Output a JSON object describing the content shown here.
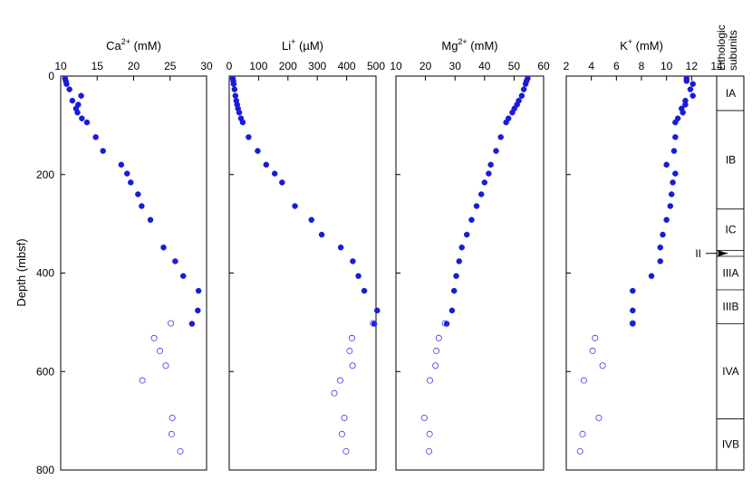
{
  "chart_data": {
    "type": "scatter",
    "y_axis": {
      "label": "Depth (mbsf)",
      "ticks": [
        0,
        200,
        400,
        600,
        800
      ],
      "ylim": [
        0,
        800
      ],
      "inverted": true
    },
    "panels": [
      {
        "title_base": "Ca",
        "title_sup": "2+",
        "title_unit": " (mM)",
        "xlim": [
          10,
          30
        ],
        "xticks": [
          10,
          15,
          20,
          25,
          30
        ],
        "series": [
          {
            "style": "filled",
            "points": [
              {
                "x": 10.6,
                "y": 5
              },
              {
                "x": 10.7,
                "y": 10
              },
              {
                "x": 10.8,
                "y": 16
              },
              {
                "x": 11.2,
                "y": 27
              },
              {
                "x": 12.8,
                "y": 40
              },
              {
                "x": 11.6,
                "y": 50
              },
              {
                "x": 12.4,
                "y": 58
              },
              {
                "x": 12.1,
                "y": 66
              },
              {
                "x": 12.3,
                "y": 74
              },
              {
                "x": 12.9,
                "y": 86
              },
              {
                "x": 13.6,
                "y": 94
              },
              {
                "x": 14.8,
                "y": 124
              },
              {
                "x": 15.8,
                "y": 152
              },
              {
                "x": 18.3,
                "y": 180
              },
              {
                "x": 19.1,
                "y": 198
              },
              {
                "x": 19.6,
                "y": 216
              },
              {
                "x": 20.6,
                "y": 240
              },
              {
                "x": 21.1,
                "y": 264
              },
              {
                "x": 22.3,
                "y": 292
              },
              {
                "x": 24.1,
                "y": 348
              },
              {
                "x": 25.7,
                "y": 376
              },
              {
                "x": 26.8,
                "y": 406
              },
              {
                "x": 28.9,
                "y": 436
              },
              {
                "x": 28.8,
                "y": 476
              },
              {
                "x": 28.0,
                "y": 503
              }
            ]
          },
          {
            "style": "open",
            "points": [
              {
                "x": 25.1,
                "y": 502
              },
              {
                "x": 22.8,
                "y": 532
              },
              {
                "x": 23.6,
                "y": 558
              },
              {
                "x": 24.4,
                "y": 588
              },
              {
                "x": 21.2,
                "y": 618
              },
              {
                "x": 25.3,
                "y": 694
              },
              {
                "x": 25.2,
                "y": 727
              },
              {
                "x": 26.4,
                "y": 762
              }
            ]
          }
        ]
      },
      {
        "title_base": "Li",
        "title_sup": "+",
        "title_unit": " (µM)",
        "xlim": [
          0,
          500
        ],
        "xticks": [
          0,
          100,
          200,
          300,
          400,
          500
        ],
        "series": [
          {
            "style": "filled",
            "points": [
              {
                "x": 12,
                "y": 5
              },
              {
                "x": 14,
                "y": 10
              },
              {
                "x": 15,
                "y": 16
              },
              {
                "x": 18,
                "y": 27
              },
              {
                "x": 21,
                "y": 40
              },
              {
                "x": 24,
                "y": 50
              },
              {
                "x": 27,
                "y": 58
              },
              {
                "x": 30,
                "y": 66
              },
              {
                "x": 34,
                "y": 74
              },
              {
                "x": 40,
                "y": 86
              },
              {
                "x": 46,
                "y": 94
              },
              {
                "x": 66,
                "y": 124
              },
              {
                "x": 97,
                "y": 152
              },
              {
                "x": 126,
                "y": 180
              },
              {
                "x": 155,
                "y": 198
              },
              {
                "x": 180,
                "y": 216
              },
              {
                "x": 224,
                "y": 264
              },
              {
                "x": 280,
                "y": 292
              },
              {
                "x": 315,
                "y": 322
              },
              {
                "x": 380,
                "y": 348
              },
              {
                "x": 421,
                "y": 376
              },
              {
                "x": 440,
                "y": 406
              },
              {
                "x": 460,
                "y": 436
              },
              {
                "x": 504,
                "y": 476
              },
              {
                "x": 494,
                "y": 503
              }
            ]
          },
          {
            "style": "open",
            "points": [
              {
                "x": 490,
                "y": 502
              },
              {
                "x": 418,
                "y": 532
              },
              {
                "x": 410,
                "y": 558
              },
              {
                "x": 420,
                "y": 588
              },
              {
                "x": 378,
                "y": 618
              },
              {
                "x": 358,
                "y": 644
              },
              {
                "x": 392,
                "y": 694
              },
              {
                "x": 384,
                "y": 727
              },
              {
                "x": 398,
                "y": 762
              }
            ]
          }
        ]
      },
      {
        "title_base": "Mg",
        "title_sup": "2+",
        "title_unit": " (mM)",
        "xlim": [
          10,
          60
        ],
        "xticks": [
          10,
          20,
          30,
          40,
          50,
          60
        ],
        "series": [
          {
            "style": "filled",
            "points": [
              {
                "x": 54.6,
                "y": 5
              },
              {
                "x": 54.2,
                "y": 10
              },
              {
                "x": 53.9,
                "y": 16
              },
              {
                "x": 53.3,
                "y": 27
              },
              {
                "x": 52.6,
                "y": 40
              },
              {
                "x": 51.6,
                "y": 50
              },
              {
                "x": 51.0,
                "y": 58
              },
              {
                "x": 50.1,
                "y": 66
              },
              {
                "x": 49.4,
                "y": 74
              },
              {
                "x": 48.1,
                "y": 86
              },
              {
                "x": 47.3,
                "y": 94
              },
              {
                "x": 45.5,
                "y": 124
              },
              {
                "x": 43.9,
                "y": 152
              },
              {
                "x": 42.1,
                "y": 180
              },
              {
                "x": 41.4,
                "y": 198
              },
              {
                "x": 40.0,
                "y": 216
              },
              {
                "x": 38.9,
                "y": 240
              },
              {
                "x": 37.3,
                "y": 264
              },
              {
                "x": 35.6,
                "y": 292
              },
              {
                "x": 34.0,
                "y": 322
              },
              {
                "x": 32.3,
                "y": 348
              },
              {
                "x": 31.4,
                "y": 376
              },
              {
                "x": 30.4,
                "y": 406
              },
              {
                "x": 29.7,
                "y": 436
              },
              {
                "x": 29.0,
                "y": 476
              },
              {
                "x": 27.2,
                "y": 503
              }
            ]
          },
          {
            "style": "open",
            "points": [
              {
                "x": 26.6,
                "y": 502
              },
              {
                "x": 24.5,
                "y": 532
              },
              {
                "x": 23.7,
                "y": 558
              },
              {
                "x": 23.4,
                "y": 588
              },
              {
                "x": 21.5,
                "y": 618
              },
              {
                "x": 19.6,
                "y": 694
              },
              {
                "x": 21.4,
                "y": 727
              },
              {
                "x": 21.2,
                "y": 762
              }
            ]
          }
        ]
      },
      {
        "title_base": "K",
        "title_sup": "+",
        "title_unit": " (mM)",
        "xlim": [
          2,
          14
        ],
        "xticks": [
          2,
          4,
          6,
          8,
          10,
          12,
          14
        ],
        "series": [
          {
            "style": "filled",
            "points": [
              {
                "x": 11.6,
                "y": 5
              },
              {
                "x": 11.6,
                "y": 10
              },
              {
                "x": 12.1,
                "y": 16
              },
              {
                "x": 11.9,
                "y": 27
              },
              {
                "x": 12.1,
                "y": 40
              },
              {
                "x": 11.5,
                "y": 50
              },
              {
                "x": 11.5,
                "y": 58
              },
              {
                "x": 11.2,
                "y": 66
              },
              {
                "x": 11.3,
                "y": 74
              },
              {
                "x": 10.9,
                "y": 86
              },
              {
                "x": 10.7,
                "y": 94
              },
              {
                "x": 10.7,
                "y": 124
              },
              {
                "x": 10.6,
                "y": 152
              },
              {
                "x": 10.0,
                "y": 180
              },
              {
                "x": 10.7,
                "y": 198
              },
              {
                "x": 10.5,
                "y": 216
              },
              {
                "x": 10.4,
                "y": 240
              },
              {
                "x": 10.3,
                "y": 264
              },
              {
                "x": 10.0,
                "y": 292
              },
              {
                "x": 9.7,
                "y": 322
              },
              {
                "x": 9.5,
                "y": 348
              },
              {
                "x": 9.5,
                "y": 376
              },
              {
                "x": 8.8,
                "y": 406
              },
              {
                "x": 7.3,
                "y": 436
              },
              {
                "x": 7.3,
                "y": 476
              },
              {
                "x": 7.3,
                "y": 503
              }
            ]
          },
          {
            "style": "open",
            "points": [
              {
                "x": 7.3,
                "y": 502
              },
              {
                "x": 4.3,
                "y": 532
              },
              {
                "x": 4.1,
                "y": 558
              },
              {
                "x": 4.9,
                "y": 588
              },
              {
                "x": 3.4,
                "y": 618
              },
              {
                "x": 4.6,
                "y": 694
              },
              {
                "x": 3.3,
                "y": 727
              },
              {
                "x": 3.1,
                "y": 762
              }
            ]
          }
        ]
      }
    ],
    "lithology": {
      "header_lines": [
        "Lithologic",
        "subunits"
      ],
      "units": [
        {
          "label": "IA",
          "top": 0,
          "bottom": 70
        },
        {
          "label": "IB",
          "top": 70,
          "bottom": 270
        },
        {
          "label": "IC",
          "top": 270,
          "bottom": 354
        },
        {
          "label": "",
          "top": 354,
          "bottom": 366
        },
        {
          "label": "IIIA",
          "top": 366,
          "bottom": 434
        },
        {
          "label": "IIIB",
          "top": 434,
          "bottom": 503
        },
        {
          "label": "IVA",
          "top": 503,
          "bottom": 696
        },
        {
          "label": "IVB",
          "top": 696,
          "bottom": 800
        }
      ],
      "marker": {
        "label": "II",
        "depth": 360
      }
    },
    "colors": {
      "filled": "#1a1adc",
      "open": "#3b3be6"
    }
  }
}
